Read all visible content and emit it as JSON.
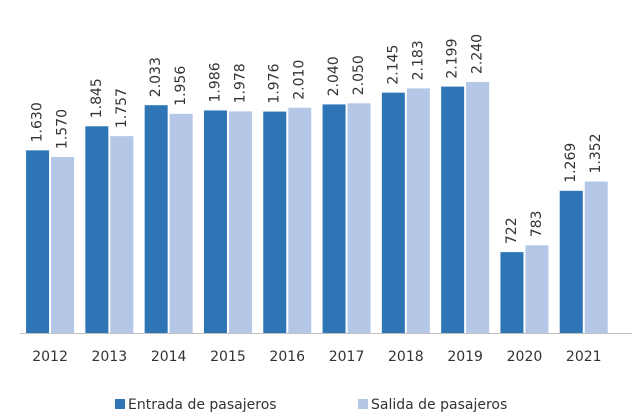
{
  "chart_data": {
    "type": "bar",
    "categories": [
      "2012",
      "2013",
      "2014",
      "2015",
      "2016",
      "2017",
      "2018",
      "2019",
      "2020",
      "2021"
    ],
    "series": [
      {
        "name": "Entrada de pasajeros",
        "color": "#2e75b6",
        "values": [
          1630,
          1845,
          2033,
          1986,
          1976,
          2040,
          2145,
          2199,
          722,
          1269
        ],
        "value_labels": [
          "1.630",
          "1.845",
          "2.033",
          "1.986",
          "1.976",
          "2.040",
          "2.145",
          "2.199",
          "722",
          "1.269"
        ]
      },
      {
        "name": "Salida de pasajeros",
        "color": "#b4c7e7",
        "values": [
          1570,
          1757,
          1956,
          1978,
          2010,
          2050,
          2183,
          2240,
          783,
          1352
        ],
        "value_labels": [
          "1.570",
          "1.757",
          "1.956",
          "1.978",
          "2.010",
          "2.050",
          "2.183",
          "2.240",
          "783",
          "1.352"
        ]
      }
    ]
  }
}
